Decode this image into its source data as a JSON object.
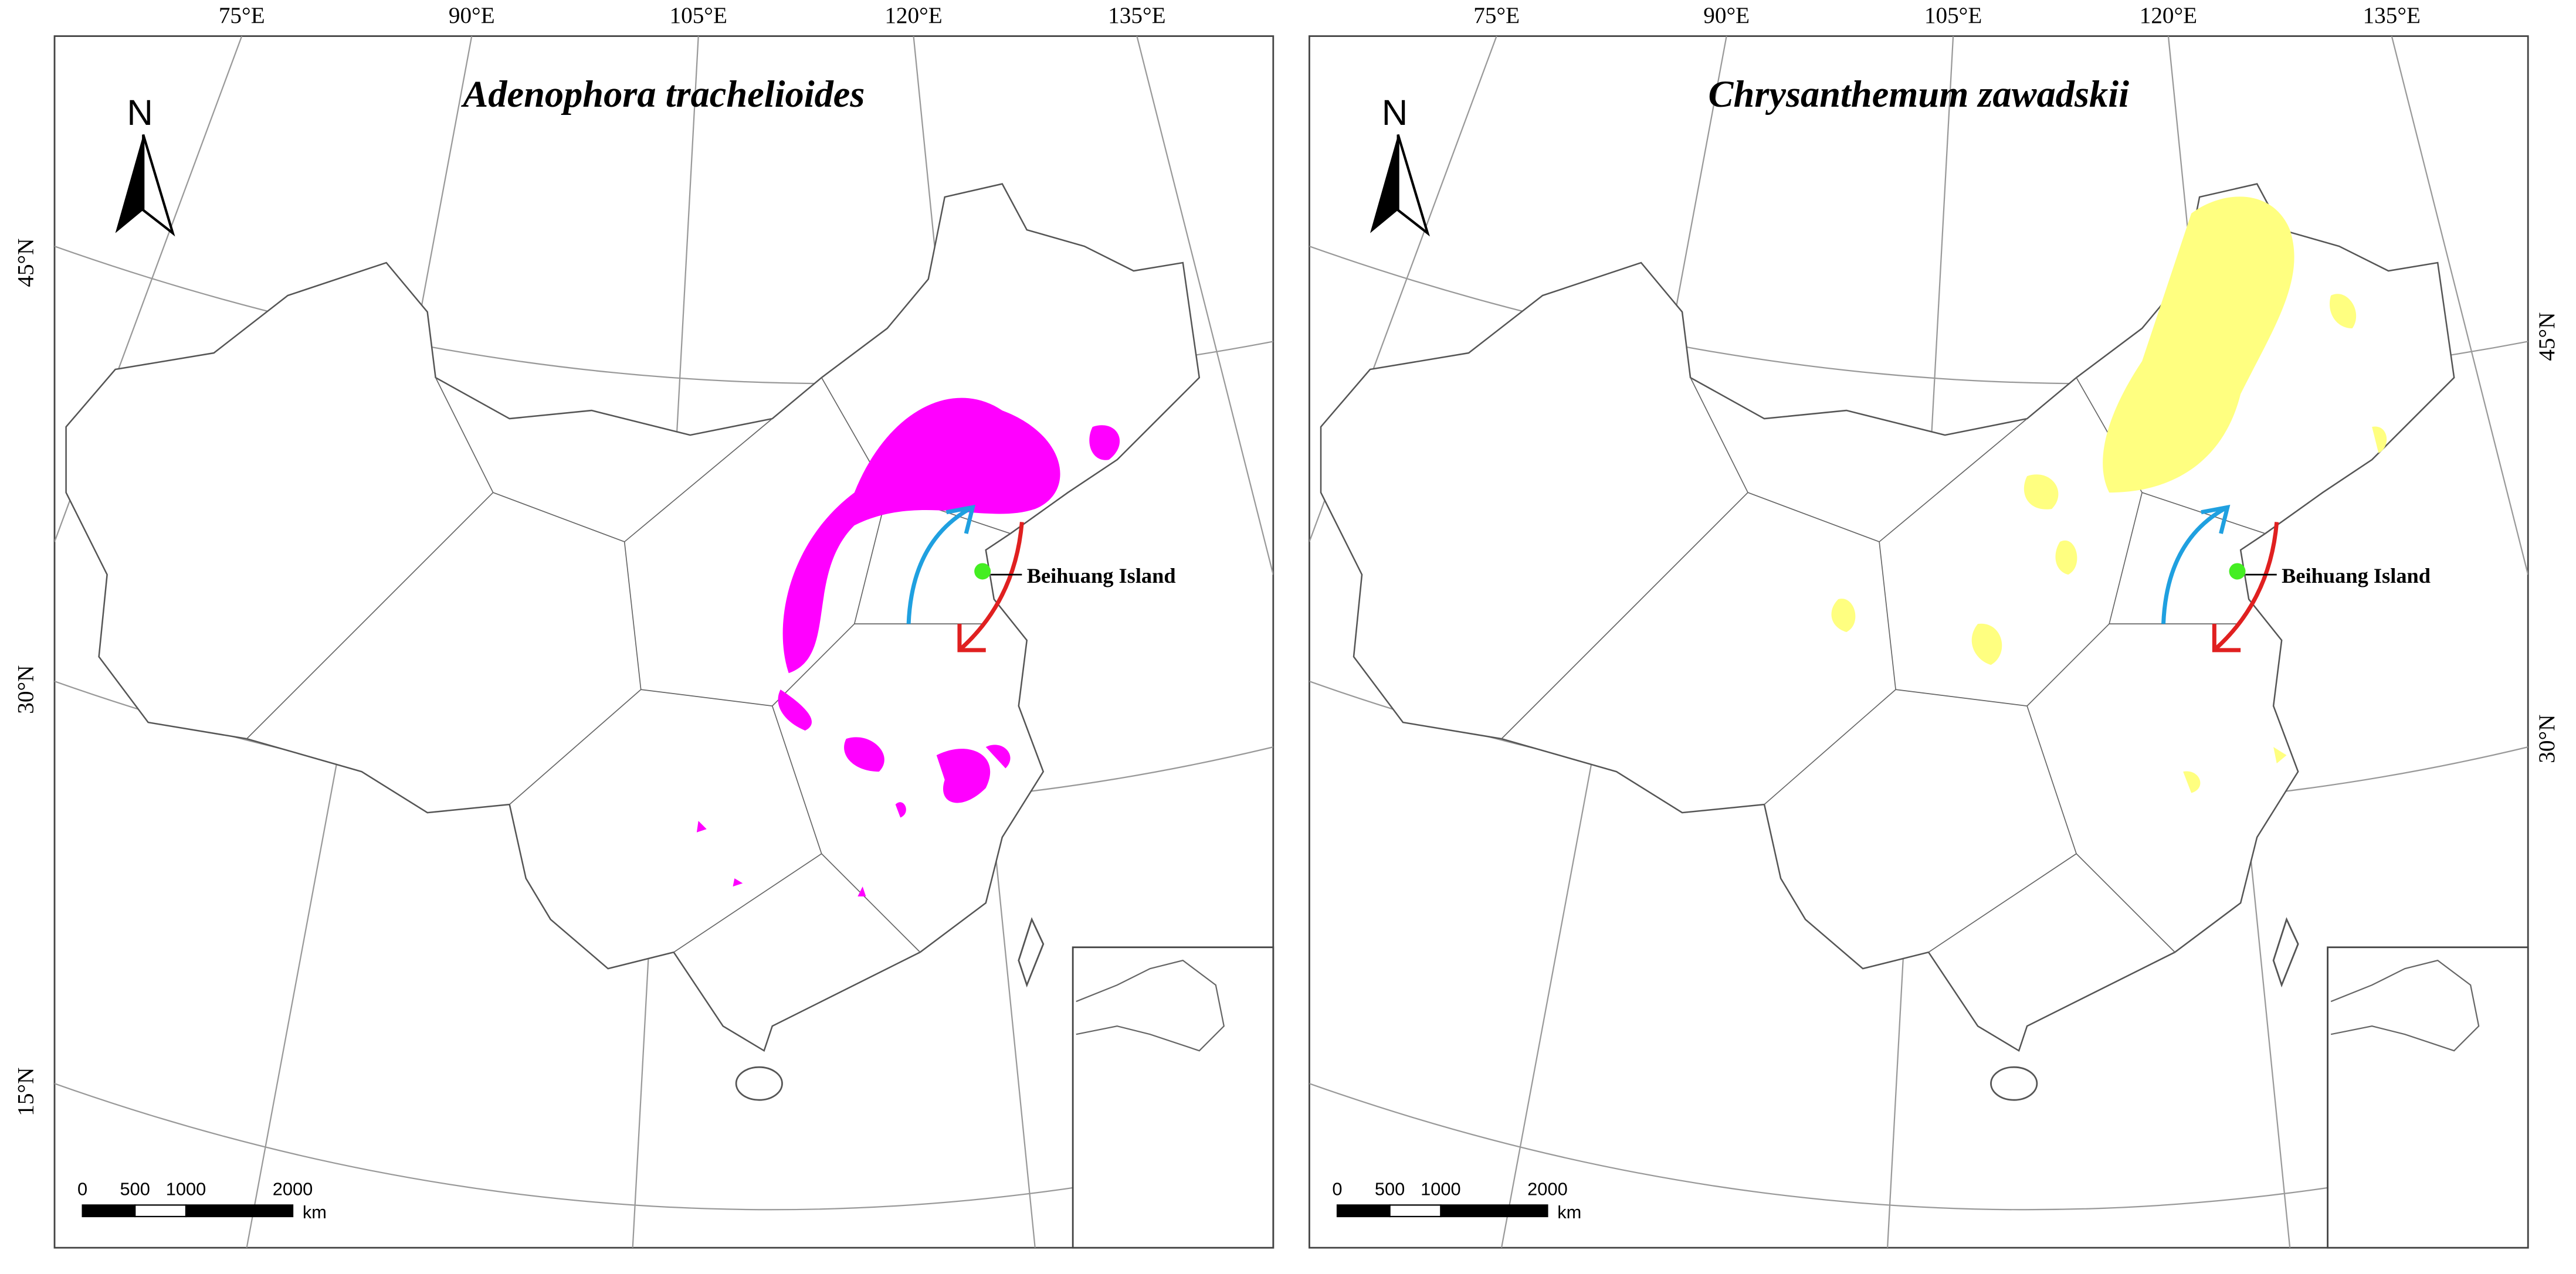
{
  "panels": [
    {
      "title": "Adenophora trachelioides",
      "longitude_labels": [
        "75°E",
        "90°E",
        "105°E",
        "120°E",
        "135°E"
      ],
      "latitude_labels": [
        "45°N",
        "30°N",
        "15°N"
      ],
      "north": "N",
      "island_label": "Beihuang Island",
      "scale_labels": [
        "0",
        "500",
        "1000",
        "2000"
      ],
      "scale_unit": "km"
    },
    {
      "title": "Chrysanthemum zawadskii",
      "longitude_labels": [
        "75°E",
        "90°E",
        "105°E",
        "120°E",
        "135°E"
      ],
      "latitude_labels": [
        "45°N",
        "30°N"
      ],
      "north": "N",
      "island_label": "Beihuang Island",
      "scale_labels": [
        "0",
        "500",
        "1000",
        "2000"
      ],
      "scale_unit": "km"
    }
  ]
}
